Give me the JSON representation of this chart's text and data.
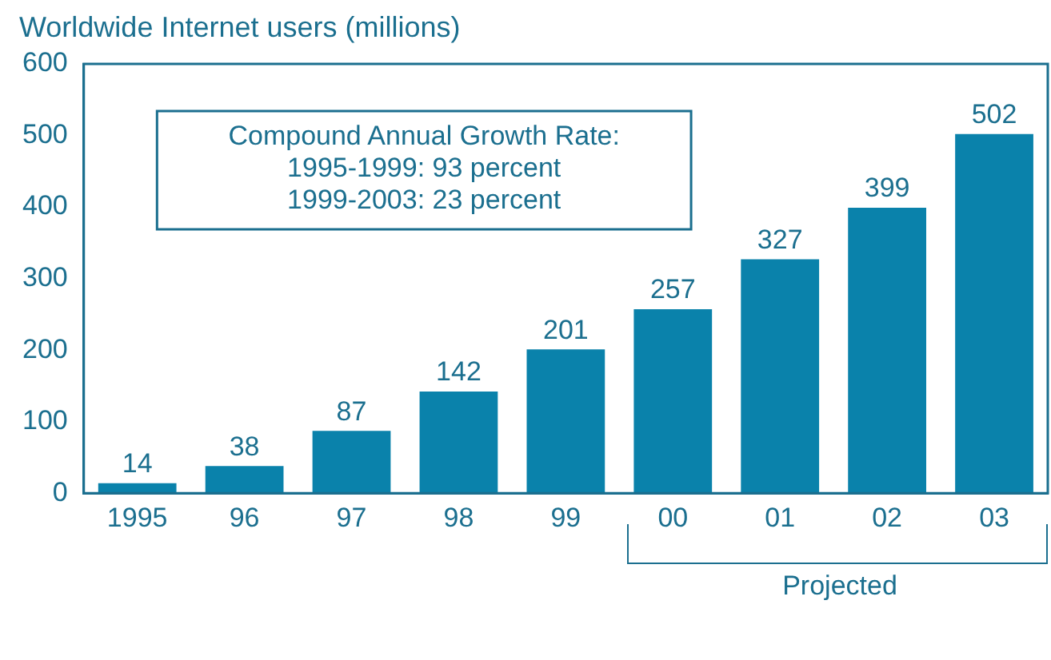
{
  "chart_data": {
    "type": "bar",
    "title": "Worldwide Internet users (millions)",
    "categories": [
      "1995",
      "96",
      "97",
      "98",
      "99",
      "00",
      "01",
      "02",
      "03"
    ],
    "values": [
      14,
      38,
      87,
      142,
      201,
      257,
      327,
      399,
      502
    ],
    "color": "#0a82ab",
    "ylim": [
      0,
      600
    ],
    "yticks": [
      0,
      100,
      200,
      300,
      400,
      500,
      600
    ],
    "grid": false,
    "legend": false,
    "data_labels": true,
    "annotations": [
      "Compound Annual Growth Rate:",
      "1995-1999: 93 percent",
      "1999-2003: 23 percent",
      "Projected"
    ]
  }
}
